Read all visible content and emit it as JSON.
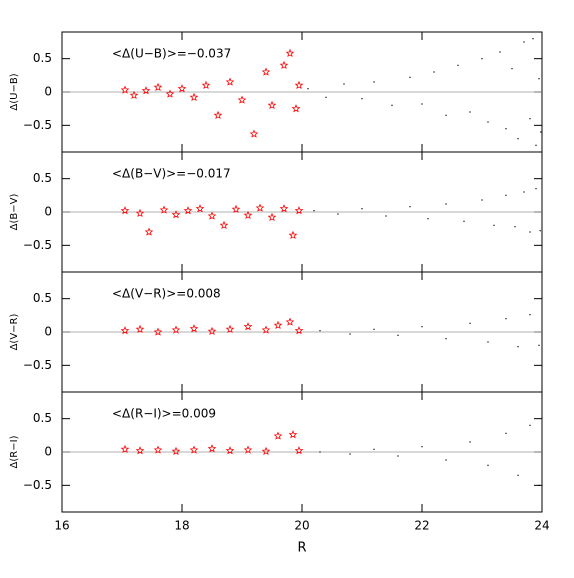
{
  "chart_data": [
    {
      "type": "scatter",
      "ylabel": "Δ(U−B)",
      "annotation": "<Δ(U−B)>=−0.037",
      "xlim": [
        16,
        24
      ],
      "xticks": [
        16,
        18,
        20,
        22,
        24
      ],
      "ylim": [
        -0.9,
        0.9
      ],
      "yticks": [
        {
          "value": -0.5,
          "label": "−0.5"
        },
        0,
        0.5
      ],
      "reference_line": 0,
      "series": [
        {
          "color": "#ff0000",
          "marker": "star",
          "x": [
            17.05,
            17.2,
            17.4,
            17.6,
            17.8,
            18.0,
            18.2,
            18.4,
            18.6,
            18.8,
            19.0,
            19.2,
            19.4,
            19.5,
            19.7,
            19.8,
            19.9,
            19.95
          ],
          "values": [
            0.03,
            -0.05,
            0.02,
            0.07,
            -0.03,
            0.05,
            -0.08,
            0.1,
            -0.35,
            0.15,
            -0.12,
            -0.63,
            0.3,
            -0.2,
            0.4,
            0.58,
            -0.25,
            0.1
          ]
        },
        {
          "color": "#000000",
          "marker": "dot",
          "x": [
            20.1,
            20.4,
            20.7,
            21.0,
            21.2,
            21.5,
            21.8,
            22.0,
            22.2,
            22.4,
            22.6,
            22.8,
            23.0,
            23.1,
            23.3,
            23.4,
            23.5,
            23.6,
            23.7,
            23.8,
            23.85,
            23.9,
            23.95,
            23.98
          ],
          "values": [
            0.05,
            -0.08,
            0.12,
            -0.1,
            0.15,
            -0.2,
            0.22,
            -0.18,
            0.3,
            -0.35,
            0.4,
            -0.3,
            0.5,
            -0.45,
            0.6,
            -0.55,
            0.35,
            -0.7,
            0.75,
            -0.4,
            0.8,
            -0.8,
            0.2,
            -0.6
          ]
        }
      ]
    },
    {
      "type": "scatter",
      "ylabel": "Δ(B−V)",
      "annotation": "<Δ(B−V)>=−0.017",
      "xlim": [
        16,
        24
      ],
      "xticks": [
        16,
        18,
        20,
        22,
        24
      ],
      "ylim": [
        -0.9,
        0.9
      ],
      "yticks": [
        {
          "value": -0.5,
          "label": "−0.5"
        },
        0,
        0.5
      ],
      "reference_line": 0,
      "series": [
        {
          "color": "#ff0000",
          "marker": "star",
          "x": [
            17.05,
            17.3,
            17.45,
            17.7,
            17.9,
            18.1,
            18.3,
            18.5,
            18.7,
            18.9,
            19.1,
            19.3,
            19.5,
            19.7,
            19.85,
            19.95
          ],
          "values": [
            0.02,
            -0.02,
            -0.3,
            0.03,
            -0.04,
            0.02,
            0.05,
            -0.06,
            -0.2,
            0.04,
            -0.05,
            0.06,
            -0.08,
            0.05,
            -0.35,
            0.02
          ]
        },
        {
          "color": "#000000",
          "marker": "dot",
          "x": [
            20.2,
            20.6,
            21.0,
            21.4,
            21.8,
            22.1,
            22.4,
            22.7,
            23.0,
            23.2,
            23.4,
            23.55,
            23.7,
            23.8,
            23.9,
            23.97
          ],
          "values": [
            0.02,
            -0.03,
            0.05,
            -0.06,
            0.08,
            -0.1,
            0.12,
            -0.14,
            0.18,
            -0.2,
            0.25,
            -0.22,
            0.3,
            -0.3,
            0.35,
            -0.28
          ]
        }
      ]
    },
    {
      "type": "scatter",
      "ylabel": "Δ(V−R)",
      "annotation": "<Δ(V−R)>=0.008",
      "xlim": [
        16,
        24
      ],
      "xticks": [
        16,
        18,
        20,
        22,
        24
      ],
      "ylim": [
        -0.9,
        0.9
      ],
      "yticks": [
        {
          "value": -0.5,
          "label": "−0.5"
        },
        0,
        0.5
      ],
      "reference_line": 0,
      "series": [
        {
          "color": "#ff0000",
          "marker": "star",
          "x": [
            17.05,
            17.3,
            17.6,
            17.9,
            18.2,
            18.5,
            18.8,
            19.1,
            19.4,
            19.6,
            19.8,
            19.95
          ],
          "values": [
            0.02,
            0.04,
            0.0,
            0.03,
            0.05,
            0.01,
            0.04,
            0.08,
            0.03,
            0.1,
            0.15,
            0.02
          ]
        },
        {
          "color": "#000000",
          "marker": "dot",
          "x": [
            20.3,
            20.8,
            21.2,
            21.6,
            22.0,
            22.4,
            22.8,
            23.1,
            23.4,
            23.6,
            23.8,
            23.95
          ],
          "values": [
            0.02,
            -0.03,
            0.04,
            -0.05,
            0.08,
            -0.1,
            0.13,
            -0.15,
            0.2,
            -0.22,
            0.26,
            -0.2
          ]
        }
      ]
    },
    {
      "type": "scatter",
      "ylabel": "Δ(R−I)",
      "annotation": "<Δ(R−I)>=0.009",
      "xlim": [
        16,
        24
      ],
      "xticks": [
        16,
        18,
        20,
        22,
        24
      ],
      "ylim": [
        -0.9,
        0.9
      ],
      "yticks": [
        {
          "value": -0.5,
          "label": "−0.5"
        },
        0,
        0.5
      ],
      "reference_line": 0,
      "xlabel": "R",
      "series": [
        {
          "color": "#ff0000",
          "marker": "star",
          "x": [
            17.05,
            17.3,
            17.6,
            17.9,
            18.2,
            18.5,
            18.8,
            19.1,
            19.4,
            19.6,
            19.85,
            19.95
          ],
          "values": [
            0.04,
            0.02,
            0.03,
            0.01,
            0.03,
            0.05,
            0.02,
            0.03,
            0.01,
            0.24,
            0.26,
            0.02
          ]
        },
        {
          "color": "#000000",
          "marker": "dot",
          "x": [
            20.3,
            20.8,
            21.2,
            21.6,
            22.0,
            22.4,
            22.8,
            23.1,
            23.4,
            23.6,
            23.8,
            23.95
          ],
          "values": [
            0.0,
            -0.03,
            0.04,
            -0.06,
            0.08,
            -0.12,
            0.15,
            -0.2,
            0.28,
            -0.35,
            0.4,
            -0.5
          ]
        }
      ]
    }
  ]
}
